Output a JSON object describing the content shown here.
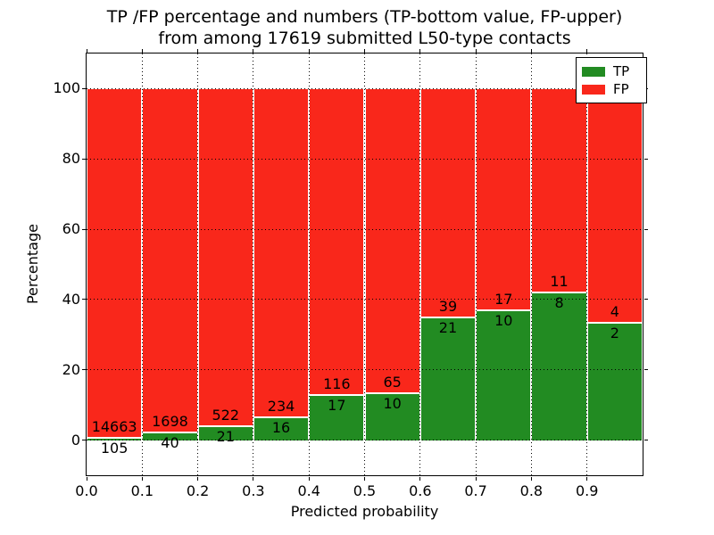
{
  "chart_data": {
    "type": "bar",
    "stacked": true,
    "percent_normalized": true,
    "title_line1": "TP /FP percentage and numbers (TP-bottom value, FP-upper)",
    "title_line2": "from among 17619 submitted L50-type contacts",
    "total_contacts": 17619,
    "xlabel": "Predicted probability",
    "ylabel": "Percentage",
    "xticklabels": [
      "0.0",
      "0.1",
      "0.2",
      "0.3",
      "0.4",
      "0.5",
      "0.6",
      "0.7",
      "0.8",
      "0.9"
    ],
    "yticks": [
      0,
      20,
      40,
      60,
      80,
      100
    ],
    "ylim": [
      -10,
      110
    ],
    "xlim": [
      0.0,
      1.0
    ],
    "bin_width": 0.1,
    "series": [
      {
        "name": "TP",
        "color": "#228b22",
        "counts": [
          105,
          40,
          21,
          16,
          17,
          10,
          21,
          10,
          8,
          2
        ]
      },
      {
        "name": "FP",
        "color": "#f9271b",
        "counts": [
          14663,
          1698,
          522,
          234,
          116,
          65,
          39,
          17,
          11,
          4
        ]
      }
    ],
    "tp_percent_of_bin": [
      0.71,
      2.3,
      3.87,
      6.4,
      12.78,
      13.33,
      35.0,
      37.04,
      42.11,
      33.33
    ],
    "grid": true,
    "grid_style": "dotted",
    "grid_color": "#000000",
    "bar_edge_color": "#ffffff",
    "legend_position": "upper right",
    "legend_labels": [
      "TP",
      "FP"
    ]
  }
}
